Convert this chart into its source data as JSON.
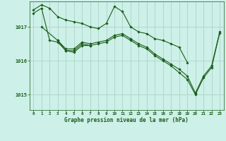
{
  "title": "Graphe pression niveau de la mer (hPa)",
  "background_color": "#cdf0e8",
  "grid_color": "#b0d8cc",
  "line_color": "#1a5c1a",
  "marker_color": "#1a5c1a",
  "ylim": [
    1014.55,
    1017.75
  ],
  "yticks": [
    1015,
    1016,
    1017
  ],
  "xlim": [
    -0.5,
    23.5
  ],
  "xticks": [
    0,
    1,
    2,
    3,
    4,
    5,
    6,
    7,
    8,
    9,
    10,
    11,
    12,
    13,
    14,
    15,
    16,
    17,
    18,
    19,
    20,
    21,
    22,
    23
  ],
  "series": [
    [
      1017.5,
      1017.65,
      1017.55,
      1017.3,
      1017.2,
      1017.15,
      1017.1,
      1017.0,
      1016.95,
      1017.1,
      1017.6,
      1017.45,
      1017.0,
      1016.85,
      1016.8,
      1016.65,
      1016.6,
      1016.5,
      1016.4,
      1015.95,
      null,
      null,
      null,
      null
    ],
    [
      null,
      1017.0,
      null,
      1016.6,
      1016.35,
      1016.35,
      1016.55,
      1016.5,
      1016.55,
      1016.6,
      1016.75,
      1016.8,
      1016.65,
      1016.5,
      1016.4,
      1016.2,
      1016.05,
      1015.9,
      1015.75,
      1015.55,
      1015.05,
      1015.55,
      1015.85,
      1016.85
    ],
    [
      null,
      null,
      null,
      1016.6,
      1016.3,
      1016.3,
      1016.5,
      1016.45,
      1016.5,
      1016.55,
      1016.7,
      1016.75,
      1016.6,
      1016.45,
      1016.35,
      1016.15,
      1016.0,
      1015.85,
      1015.65,
      1015.45,
      1015.0,
      1015.5,
      1015.8,
      1016.82
    ],
    [
      1017.4,
      1017.55,
      1016.6,
      1016.55,
      1016.3,
      1016.25,
      1016.45,
      1016.45,
      null,
      null,
      null,
      null,
      null,
      null,
      null,
      null,
      null,
      null,
      null,
      null,
      null,
      null,
      null,
      null
    ]
  ]
}
